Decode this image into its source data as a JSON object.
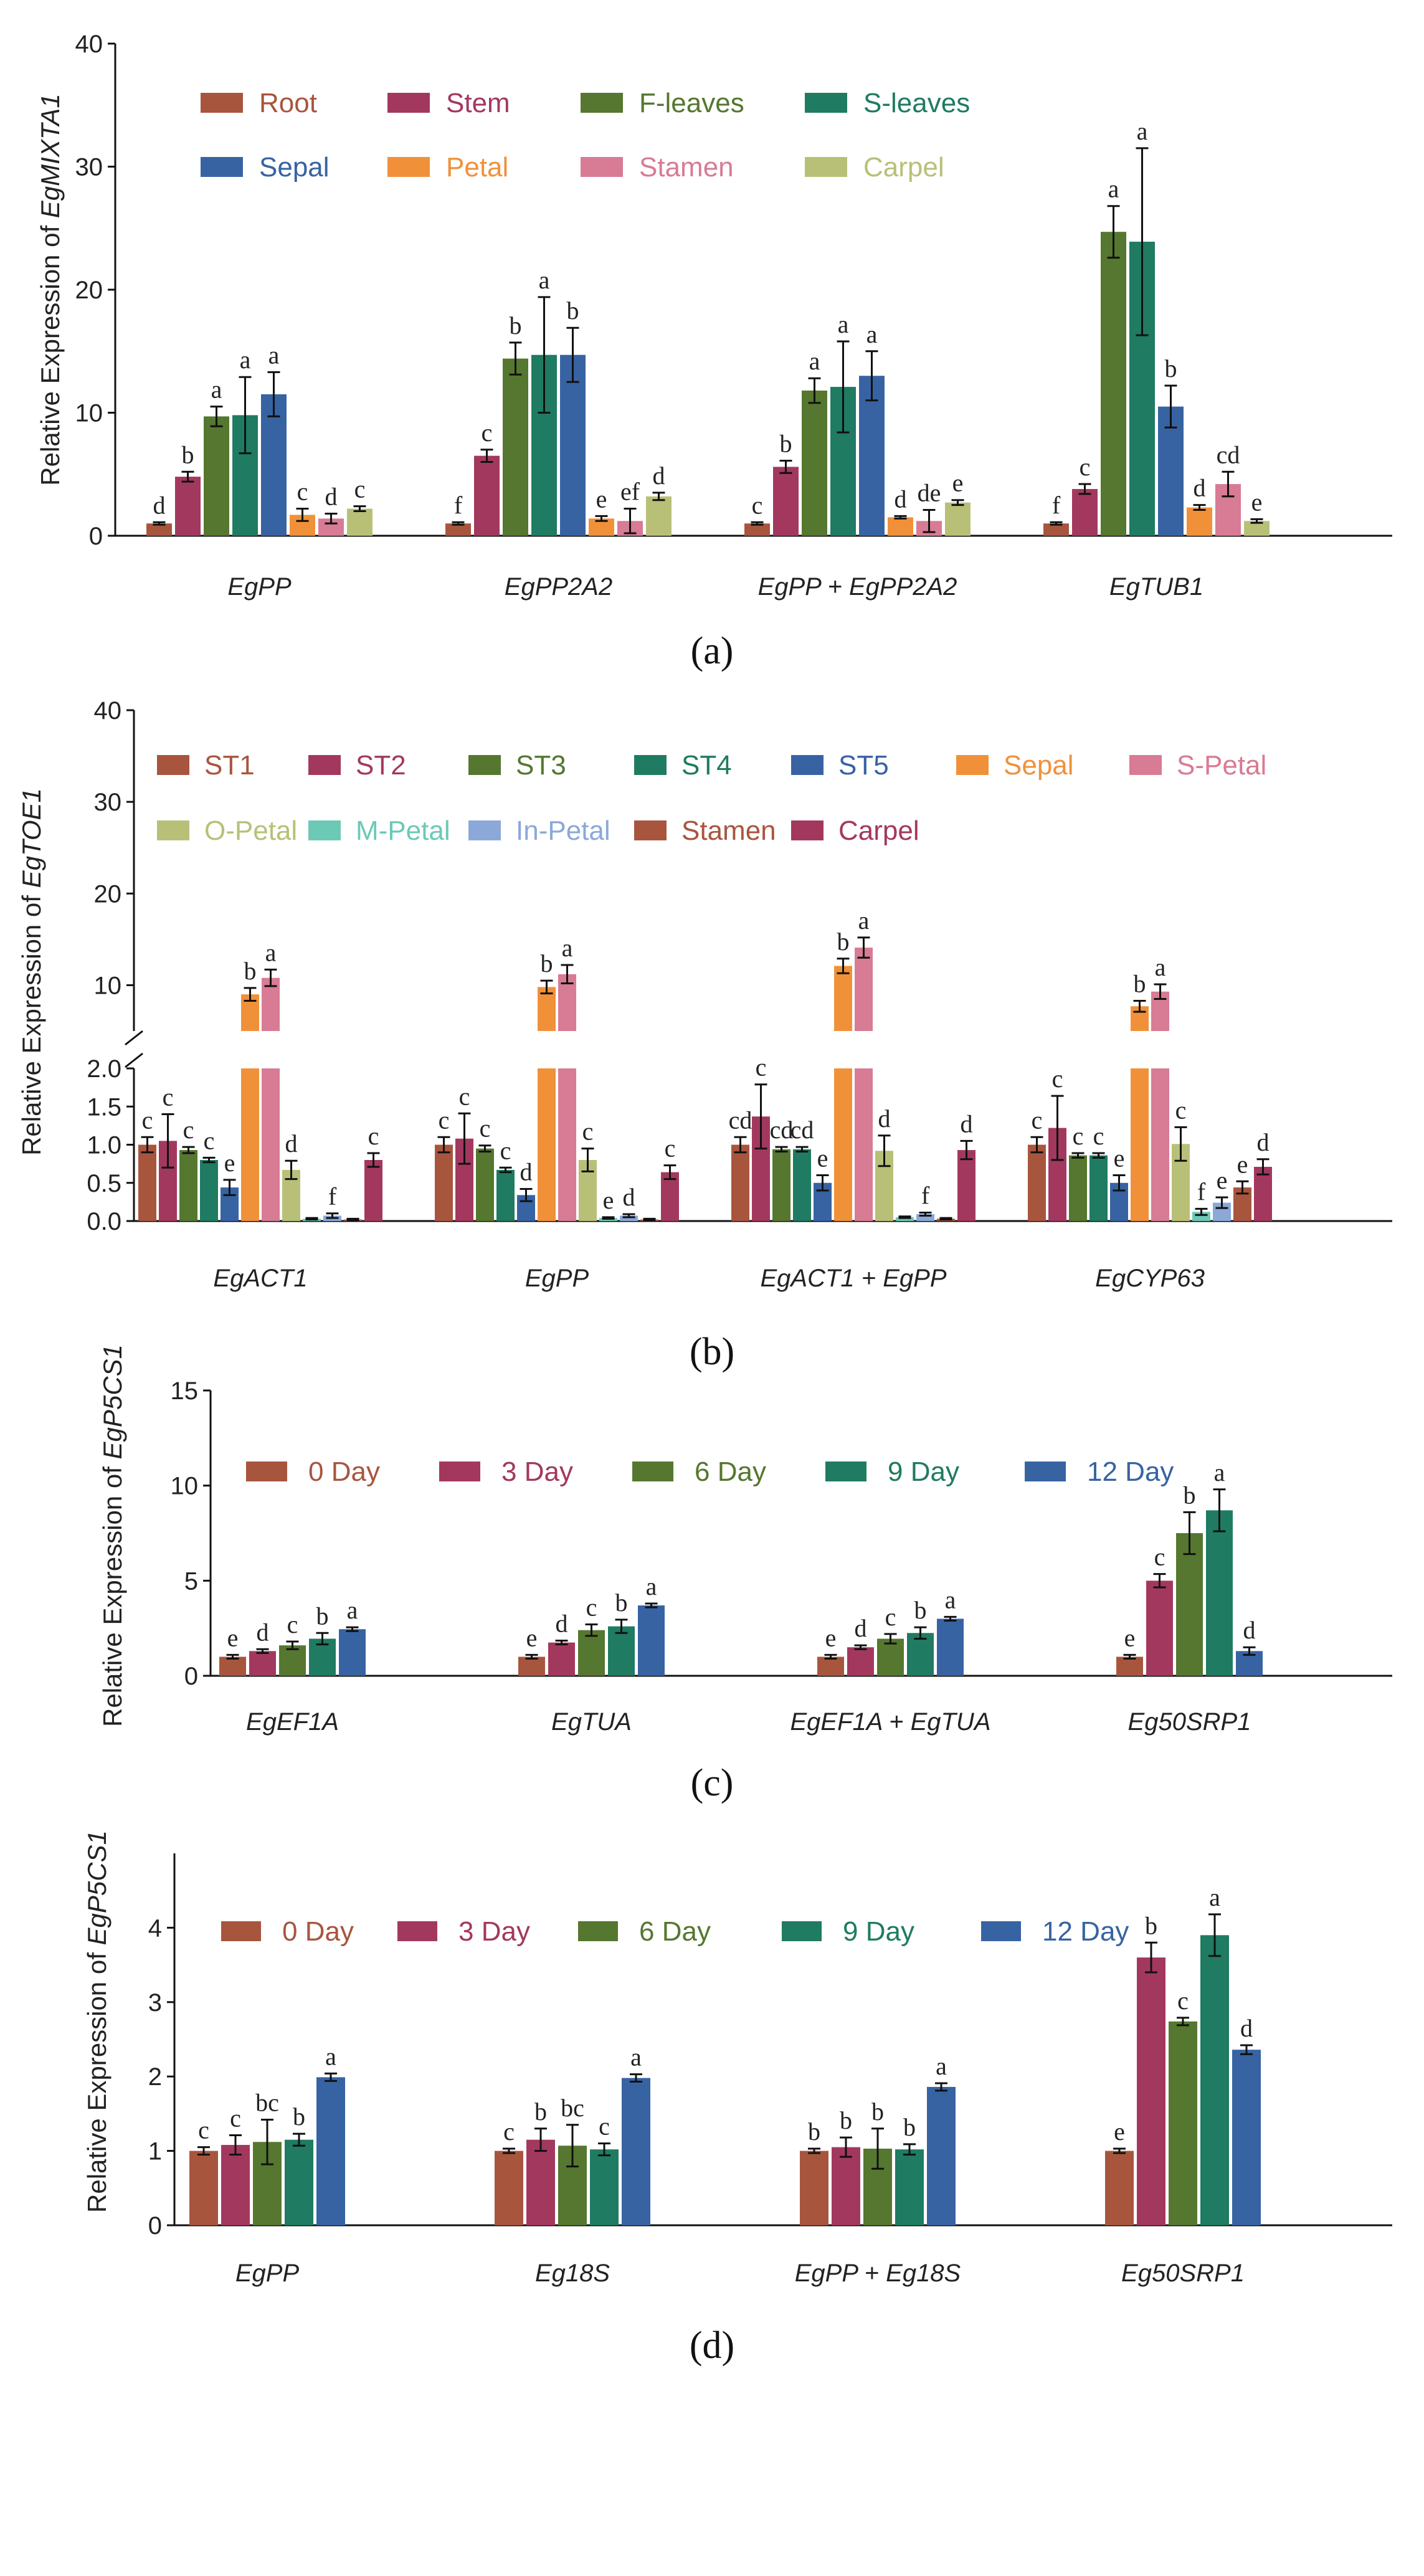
{
  "chart_data": [
    {
      "panel": "a",
      "caption": "(a)",
      "type": "bar",
      "ylabel_prefix": "Relative Expression of ",
      "ylabel_gene": "EgMIXTA1",
      "ylim": [
        0,
        40
      ],
      "yticks": [
        0,
        10,
        20,
        30,
        40
      ],
      "categories": [
        "EgPP",
        "EgPP2A2",
        "EgPP + EgPP2A2",
        "EgTUB1"
      ],
      "legend_rows": [
        [
          "Root",
          "Stem",
          "F-leaves",
          "S-leaves"
        ],
        [
          "Sepal",
          "Petal",
          "Stamen",
          "Carpel"
        ]
      ],
      "series": [
        {
          "name": "Root",
          "color": "#a8553e",
          "values": [
            1.0,
            1.0,
            1.0,
            1.0
          ],
          "errors": [
            0.1,
            0.1,
            0.1,
            0.1
          ],
          "letters": [
            "d",
            "f",
            "c",
            "f"
          ]
        },
        {
          "name": "Stem",
          "color": "#a3385f",
          "values": [
            4.8,
            6.5,
            5.6,
            3.8
          ],
          "errors": [
            0.4,
            0.5,
            0.5,
            0.4
          ],
          "letters": [
            "b",
            "c",
            "b",
            "c"
          ]
        },
        {
          "name": "F-leaves",
          "color": "#55772f",
          "values": [
            9.7,
            14.4,
            11.8,
            24.7
          ],
          "errors": [
            0.8,
            1.3,
            1.0,
            2.1
          ],
          "letters": [
            "a",
            "b",
            "a",
            "a"
          ]
        },
        {
          "name": "S-leaves",
          "color": "#1f7b61",
          "values": [
            9.8,
            14.7,
            12.1,
            23.9
          ],
          "errors": [
            3.1,
            4.7,
            3.7,
            7.6
          ],
          "letters": [
            "a",
            "a",
            "a",
            "a"
          ]
        },
        {
          "name": "Sepal",
          "color": "#3763a3",
          "values": [
            11.5,
            14.7,
            13.0,
            10.5
          ],
          "errors": [
            1.8,
            2.2,
            2.0,
            1.7
          ],
          "letters": [
            "a",
            "b",
            "a",
            "b"
          ]
        },
        {
          "name": "Petal",
          "color": "#f0913a",
          "values": [
            1.7,
            1.4,
            1.5,
            2.3
          ],
          "errors": [
            0.5,
            0.2,
            0.1,
            0.2
          ],
          "letters": [
            "c",
            "e",
            "d",
            "d"
          ]
        },
        {
          "name": "Stamen",
          "color": "#d87b95",
          "values": [
            1.4,
            1.2,
            1.2,
            4.2
          ],
          "errors": [
            0.4,
            1.0,
            0.9,
            1.0
          ],
          "letters": [
            "d",
            "ef",
            "de",
            "cd"
          ]
        },
        {
          "name": "Carpel",
          "color": "#b8c078",
          "values": [
            2.2,
            3.2,
            2.7,
            1.2
          ],
          "errors": [
            0.2,
            0.3,
            0.2,
            0.15
          ],
          "letters": [
            "c",
            "d",
            "e",
            "e"
          ]
        }
      ]
    },
    {
      "panel": "b",
      "caption": "(b)",
      "type": "bar",
      "broken_axis": true,
      "ylabel_prefix": "Relative Expression of ",
      "ylabel_gene": "EgTOE1",
      "ylim_lower": [
        0,
        2
      ],
      "yticks_lower": [
        "0.0",
        "0.5",
        "1.0",
        "1.5",
        "2.0"
      ],
      "ylim_upper": [
        5,
        40
      ],
      "yticks_upper": [
        "10",
        "20",
        "30",
        "40"
      ],
      "categories": [
        "EgACT1",
        "EgPP",
        "EgACT1 + EgPP",
        "EgCYP63"
      ],
      "legend_rows": [
        [
          "ST1",
          "ST2",
          "ST3",
          "ST4",
          "ST5",
          "Sepal",
          "S-Petal"
        ],
        [
          "O-Petal",
          "M-Petal",
          "In-Petal",
          "Stamen",
          "Carpel"
        ]
      ],
      "series": [
        {
          "name": "ST1",
          "color": "#a8553e",
          "values": [
            1.0,
            1.0,
            1.0,
            1.0
          ],
          "errors": [
            0.1,
            0.1,
            0.1,
            0.1
          ],
          "letters": [
            "c",
            "c",
            "cd",
            "c"
          ]
        },
        {
          "name": "ST2",
          "color": "#a3385f",
          "values": [
            1.05,
            1.08,
            1.37,
            1.22
          ],
          "errors": [
            0.35,
            0.33,
            0.42,
            0.42
          ],
          "letters": [
            "c",
            "c",
            "c",
            "c"
          ]
        },
        {
          "name": "ST3",
          "color": "#55772f",
          "values": [
            0.93,
            0.95,
            0.94,
            0.86
          ],
          "errors": [
            0.04,
            0.04,
            0.03,
            0.03
          ],
          "letters": [
            "c",
            "c",
            "cd",
            "c"
          ]
        },
        {
          "name": "ST4",
          "color": "#1f7b61",
          "values": [
            0.8,
            0.67,
            0.94,
            0.86
          ],
          "errors": [
            0.03,
            0.03,
            0.03,
            0.03
          ],
          "letters": [
            "c",
            "c",
            "cd",
            "c"
          ]
        },
        {
          "name": "ST5",
          "color": "#3763a3",
          "values": [
            0.44,
            0.34,
            0.5,
            0.5
          ],
          "errors": [
            0.1,
            0.08,
            0.1,
            0.1
          ],
          "letters": [
            "e",
            "d",
            "e",
            "e"
          ]
        },
        {
          "name": "Sepal",
          "color": "#f0913a",
          "values": [
            9.0,
            9.8,
            12.1,
            7.7
          ],
          "errors": [
            0.7,
            0.7,
            0.8,
            0.6
          ],
          "letters": [
            "b",
            "b",
            "b",
            "b"
          ]
        },
        {
          "name": "S-Petal",
          "color": "#d87b95",
          "values": [
            10.8,
            11.2,
            14.1,
            9.3
          ],
          "errors": [
            0.9,
            1.0,
            1.1,
            0.8
          ],
          "letters": [
            "a",
            "a",
            "a",
            "a"
          ]
        },
        {
          "name": "O-Petal",
          "color": "#b8c078",
          "values": [
            0.67,
            0.8,
            0.92,
            1.01
          ],
          "errors": [
            0.12,
            0.15,
            0.2,
            0.22
          ],
          "letters": [
            "d",
            "c",
            "d",
            "c"
          ]
        },
        {
          "name": "M-Petal",
          "color": "#6cc9b6",
          "values": [
            0.03,
            0.04,
            0.05,
            0.12
          ],
          "errors": [
            0.01,
            0.01,
            0.01,
            0.04
          ],
          "letters": [
            "",
            "e",
            "",
            "f"
          ]
        },
        {
          "name": "In-Petal",
          "color": "#8ba8d8",
          "values": [
            0.07,
            0.07,
            0.09,
            0.24
          ],
          "errors": [
            0.03,
            0.02,
            0.02,
            0.07
          ],
          "letters": [
            "f",
            "d",
            "f",
            "e"
          ]
        },
        {
          "name": "Stamen",
          "color": "#a8553e",
          "values": [
            0.02,
            0.02,
            0.03,
            0.44
          ],
          "errors": [
            0.01,
            0.01,
            0.01,
            0.08
          ],
          "letters": [
            "",
            "",
            "",
            "e"
          ]
        },
        {
          "name": "Carpel",
          "color": "#a3385f",
          "values": [
            0.8,
            0.64,
            0.93,
            0.71
          ],
          "errors": [
            0.09,
            0.09,
            0.12,
            0.1
          ],
          "letters": [
            "c",
            "c",
            "d",
            "d"
          ]
        }
      ]
    },
    {
      "panel": "c",
      "caption": "(c)",
      "type": "bar",
      "ylabel_prefix": "Relative Expression of ",
      "ylabel_gene": "EgP5CS1",
      "ylim": [
        0,
        15
      ],
      "yticks": [
        0,
        5,
        10,
        15
      ],
      "categories": [
        "EgEF1A",
        "EgTUA",
        "EgEF1A + EgTUA",
        "Eg50SRP1"
      ],
      "legend_rows": [
        [
          "0 Day",
          "3 Day",
          "6 Day",
          "9 Day",
          "12 Day"
        ]
      ],
      "series": [
        {
          "name": "0 Day",
          "color": "#a8553e",
          "values": [
            1.0,
            1.0,
            1.0,
            1.0
          ],
          "errors": [
            0.1,
            0.1,
            0.1,
            0.1
          ],
          "letters": [
            "e",
            "e",
            "e",
            "e"
          ]
        },
        {
          "name": "3 Day",
          "color": "#a3385f",
          "values": [
            1.3,
            1.75,
            1.5,
            5.0
          ],
          "errors": [
            0.1,
            0.1,
            0.1,
            0.35
          ],
          "letters": [
            "d",
            "d",
            "d",
            "c"
          ]
        },
        {
          "name": "6 Day",
          "color": "#55772f",
          "values": [
            1.6,
            2.4,
            1.95,
            7.5
          ],
          "errors": [
            0.2,
            0.3,
            0.25,
            1.1
          ],
          "letters": [
            "c",
            "c",
            "c",
            "b"
          ]
        },
        {
          "name": "9 Day",
          "color": "#1f7b61",
          "values": [
            1.95,
            2.6,
            2.25,
            8.7
          ],
          "errors": [
            0.3,
            0.35,
            0.3,
            1.1
          ],
          "letters": [
            "b",
            "b",
            "b",
            "a"
          ]
        },
        {
          "name": "12 Day",
          "color": "#3763a3",
          "values": [
            2.45,
            3.7,
            3.0,
            1.3
          ],
          "errors": [
            0.1,
            0.1,
            0.1,
            0.2
          ],
          "letters": [
            "a",
            "a",
            "a",
            "d"
          ]
        }
      ]
    },
    {
      "panel": "d",
      "caption": "(d)",
      "type": "bar",
      "ylabel_prefix": "Relative Expression of ",
      "ylabel_gene": "EgP5CS1",
      "ylim": [
        0,
        5
      ],
      "yticks": [
        0,
        1,
        2,
        3,
        4
      ],
      "categories": [
        "EgPP",
        "Eg18S",
        "EgPP + Eg18S",
        "Eg50SRP1"
      ],
      "legend_rows": [
        [
          "0 Day",
          "3 Day",
          "6 Day",
          "9 Day",
          "12 Day"
        ]
      ],
      "series": [
        {
          "name": "0 Day",
          "color": "#a8553e",
          "values": [
            1.0,
            1.0,
            1.0,
            1.0
          ],
          "errors": [
            0.05,
            0.03,
            0.03,
            0.03
          ],
          "letters": [
            "c",
            "c",
            "b",
            "e"
          ]
        },
        {
          "name": "3 Day",
          "color": "#a3385f",
          "values": [
            1.08,
            1.15,
            1.05,
            3.6
          ],
          "errors": [
            0.13,
            0.15,
            0.13,
            0.2
          ],
          "letters": [
            "c",
            "b",
            "b",
            "b"
          ]
        },
        {
          "name": "6 Day",
          "color": "#55772f",
          "values": [
            1.12,
            1.07,
            1.03,
            2.74
          ],
          "errors": [
            0.3,
            0.28,
            0.27,
            0.05
          ],
          "letters": [
            "bc",
            "bc",
            "b",
            "c"
          ]
        },
        {
          "name": "9 Day",
          "color": "#1f7b61",
          "values": [
            1.15,
            1.02,
            1.02,
            3.9
          ],
          "errors": [
            0.08,
            0.08,
            0.07,
            0.28
          ],
          "letters": [
            "b",
            "c",
            "b",
            "a"
          ]
        },
        {
          "name": "12 Day",
          "color": "#3763a3",
          "values": [
            1.99,
            1.98,
            1.86,
            2.36
          ],
          "errors": [
            0.05,
            0.05,
            0.05,
            0.06
          ],
          "letters": [
            "a",
            "a",
            "a",
            "d"
          ]
        }
      ]
    }
  ]
}
